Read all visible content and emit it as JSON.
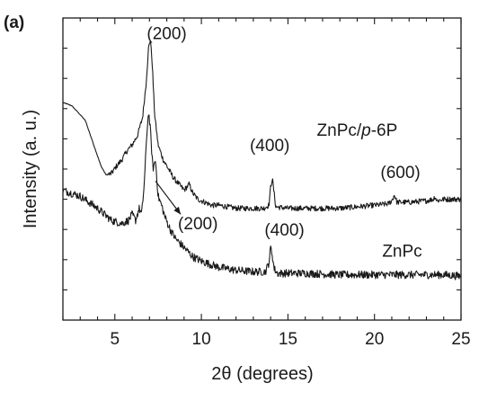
{
  "panel_label": "(a)",
  "chart_data": {
    "type": "line",
    "title": "",
    "xlabel": "2θ (degrees)",
    "ylabel": "Intensity (a. u.)",
    "xlim": [
      2,
      25
    ],
    "ylim": [
      0,
      100
    ],
    "x_ticks": [
      5,
      10,
      15,
      20,
      25
    ],
    "y_ticks_labeled": false,
    "grid": false,
    "series": [
      {
        "name": "ZnPc/p-6P",
        "color": "#1a1a1a",
        "points": [
          [
            2.0,
            72
          ],
          [
            2.5,
            71
          ],
          [
            3.0,
            68
          ],
          [
            3.3,
            66
          ],
          [
            3.6,
            61
          ],
          [
            3.9,
            56
          ],
          [
            4.2,
            51
          ],
          [
            4.5,
            48
          ],
          [
            4.8,
            48.5
          ],
          [
            5.1,
            51
          ],
          [
            5.4,
            53
          ],
          [
            5.7,
            56
          ],
          [
            6.0,
            58
          ],
          [
            6.3,
            61
          ],
          [
            6.6,
            67
          ],
          [
            6.8,
            78
          ],
          [
            6.95,
            90
          ],
          [
            7.05,
            93
          ],
          [
            7.15,
            86
          ],
          [
            7.3,
            68
          ],
          [
            7.5,
            58
          ],
          [
            7.8,
            53
          ],
          [
            8.1,
            50
          ],
          [
            8.4,
            47
          ],
          [
            8.7,
            45
          ],
          [
            9.0,
            43
          ],
          [
            9.3,
            45
          ],
          [
            9.5,
            42
          ],
          [
            9.8,
            40
          ],
          [
            10.2,
            39
          ],
          [
            10.6,
            38
          ],
          [
            11.0,
            38
          ],
          [
            11.5,
            37.5
          ],
          [
            12.0,
            37
          ],
          [
            12.5,
            37
          ],
          [
            13.0,
            37
          ],
          [
            13.6,
            37
          ],
          [
            13.9,
            38
          ],
          [
            14.0,
            44
          ],
          [
            14.1,
            47
          ],
          [
            14.2,
            42
          ],
          [
            14.3,
            37.5
          ],
          [
            15.0,
            37
          ],
          [
            16.0,
            37
          ],
          [
            17.0,
            37
          ],
          [
            18.0,
            37
          ],
          [
            19.0,
            37.5
          ],
          [
            20.0,
            38
          ],
          [
            20.8,
            38.5
          ],
          [
            21.0,
            39.5
          ],
          [
            21.15,
            41.5
          ],
          [
            21.3,
            39
          ],
          [
            22.0,
            39
          ],
          [
            23.0,
            39.5
          ],
          [
            23.4,
            40
          ],
          [
            23.5,
            41
          ],
          [
            23.6,
            39.5
          ],
          [
            24.0,
            40
          ],
          [
            25.0,
            40
          ]
        ],
        "noise": 0.9
      },
      {
        "name": "ZnPc",
        "color": "#1a1a1a",
        "points": [
          [
            2.0,
            43
          ],
          [
            3.0,
            41
          ],
          [
            4.0,
            37
          ],
          [
            4.8,
            33
          ],
          [
            5.4,
            32
          ],
          [
            5.8,
            33
          ],
          [
            6.0,
            35
          ],
          [
            6.2,
            33
          ],
          [
            6.4,
            37
          ],
          [
            6.55,
            35
          ],
          [
            6.7,
            45
          ],
          [
            6.85,
            62
          ],
          [
            6.95,
            69
          ],
          [
            7.05,
            63
          ],
          [
            7.2,
            50
          ],
          [
            7.35,
            53
          ],
          [
            7.5,
            41
          ],
          [
            7.7,
            38
          ],
          [
            7.9,
            34
          ],
          [
            8.2,
            30
          ],
          [
            8.5,
            27
          ],
          [
            9.0,
            24
          ],
          [
            9.5,
            21
          ],
          [
            10.0,
            19.5
          ],
          [
            10.5,
            18.5
          ],
          [
            11.0,
            17.5
          ],
          [
            12.0,
            16.5
          ],
          [
            13.0,
            16
          ],
          [
            13.7,
            16
          ],
          [
            13.9,
            19
          ],
          [
            14.0,
            24
          ],
          [
            14.1,
            21.5
          ],
          [
            14.2,
            17
          ],
          [
            14.4,
            15.5
          ],
          [
            16.0,
            15.5
          ],
          [
            18.0,
            15
          ],
          [
            20.0,
            15
          ],
          [
            22.0,
            15
          ],
          [
            23.5,
            15
          ],
          [
            24.0,
            15
          ],
          [
            25.0,
            14.5
          ]
        ],
        "noise": 1.3
      }
    ],
    "annotations": [
      {
        "text": "(200)",
        "x": 8.0,
        "y": 93
      },
      {
        "text": "(400)",
        "x": 13.95,
        "y": 56
      },
      {
        "text": "ZnPc/p-6P",
        "x": 19.0,
        "y": 61
      },
      {
        "text": "(600)",
        "x": 21.5,
        "y": 47
      },
      {
        "text": "(200)",
        "x": 9.8,
        "y": 30
      },
      {
        "text": "(400)",
        "x": 14.8,
        "y": 28
      },
      {
        "text": "ZnPc",
        "x": 21.6,
        "y": 21
      }
    ],
    "arrow": {
      "from": [
        7.35,
        46
      ],
      "to": [
        8.8,
        35
      ]
    }
  }
}
